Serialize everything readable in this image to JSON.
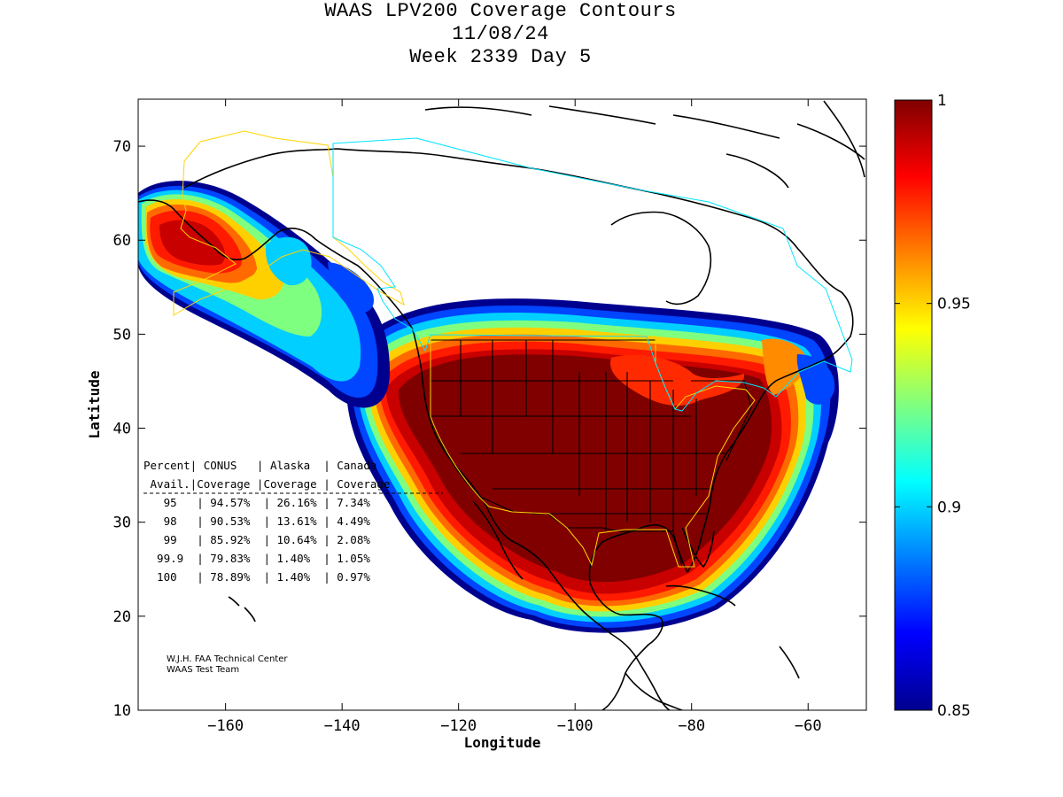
{
  "title": {
    "line1": "WAAS LPV200 Coverage Contours",
    "line2": "11/08/24",
    "line3": "Week 2339 Day 5"
  },
  "chart_data": {
    "type": "heatmap",
    "map_projection": "equirectangular",
    "xlabel": "Longitude",
    "ylabel": "Latitude",
    "xlim": [
      -175,
      -50
    ],
    "ylim": [
      10,
      75
    ],
    "x_ticks": [
      -160,
      -140,
      -120,
      -100,
      -80,
      -60
    ],
    "y_ticks": [
      10,
      20,
      30,
      40,
      50,
      60,
      70
    ],
    "colorbar": {
      "min": 0.85,
      "max": 1,
      "ticks": [
        "1",
        "0.95",
        "0.9",
        "0.85"
      ],
      "tick_values": [
        1,
        0.95,
        0.9,
        0.85
      ],
      "colormap": "jet"
    },
    "table": {
      "header1": [
        "Percent",
        "CONUS",
        "Alaska",
        "Canada"
      ],
      "header2": [
        "Avail.",
        "Coverage",
        "Coverage",
        "Coverage"
      ],
      "rows": [
        [
          "95",
          "94.57%",
          "26.16%",
          "7.34%"
        ],
        [
          "98",
          "90.53%",
          "13.61%",
          "4.49%"
        ],
        [
          "99",
          "85.92%",
          "10.64%",
          "2.08%"
        ],
        [
          "99.9",
          "79.83%",
          "1.40%",
          "1.05%"
        ],
        [
          "100",
          "78.89%",
          "1.40%",
          "0.97%"
        ]
      ]
    },
    "credit": [
      "W.J.H. FAA Technical Center",
      "WAAS Test Team"
    ]
  },
  "colors": {
    "boundary_conus": "#ffd400",
    "boundary_canada": "#00e5ff",
    "coast": "#000000"
  }
}
